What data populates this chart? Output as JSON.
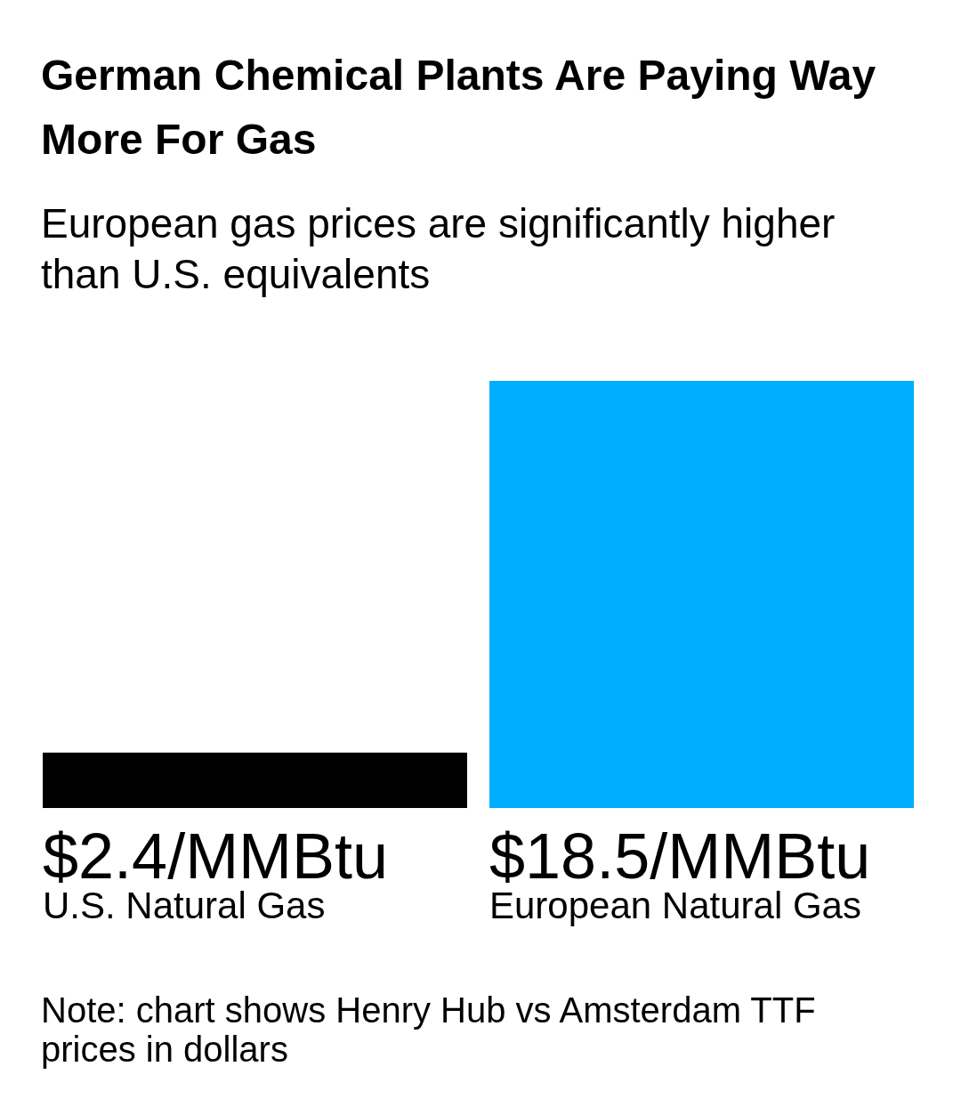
{
  "chart_data": {
    "type": "bar",
    "title": "German Chemical Plants Are Paying Way More For Gas",
    "subtitle": "European gas prices are significantly higher than U.S. equivalents",
    "categories": [
      "U.S. Natural Gas",
      "European Natural Gas"
    ],
    "values": [
      2.4,
      18.5
    ],
    "colors": [
      "#000000",
      "#00aeff"
    ],
    "value_labels": [
      "$2.4/MMBtu",
      "$18.5/MMBtu"
    ],
    "tick_labels": "x",
    "annotations": [
      "Note: chart shows Henry Hub vs Amsterdam TTF prices in dollars"
    ]
  }
}
